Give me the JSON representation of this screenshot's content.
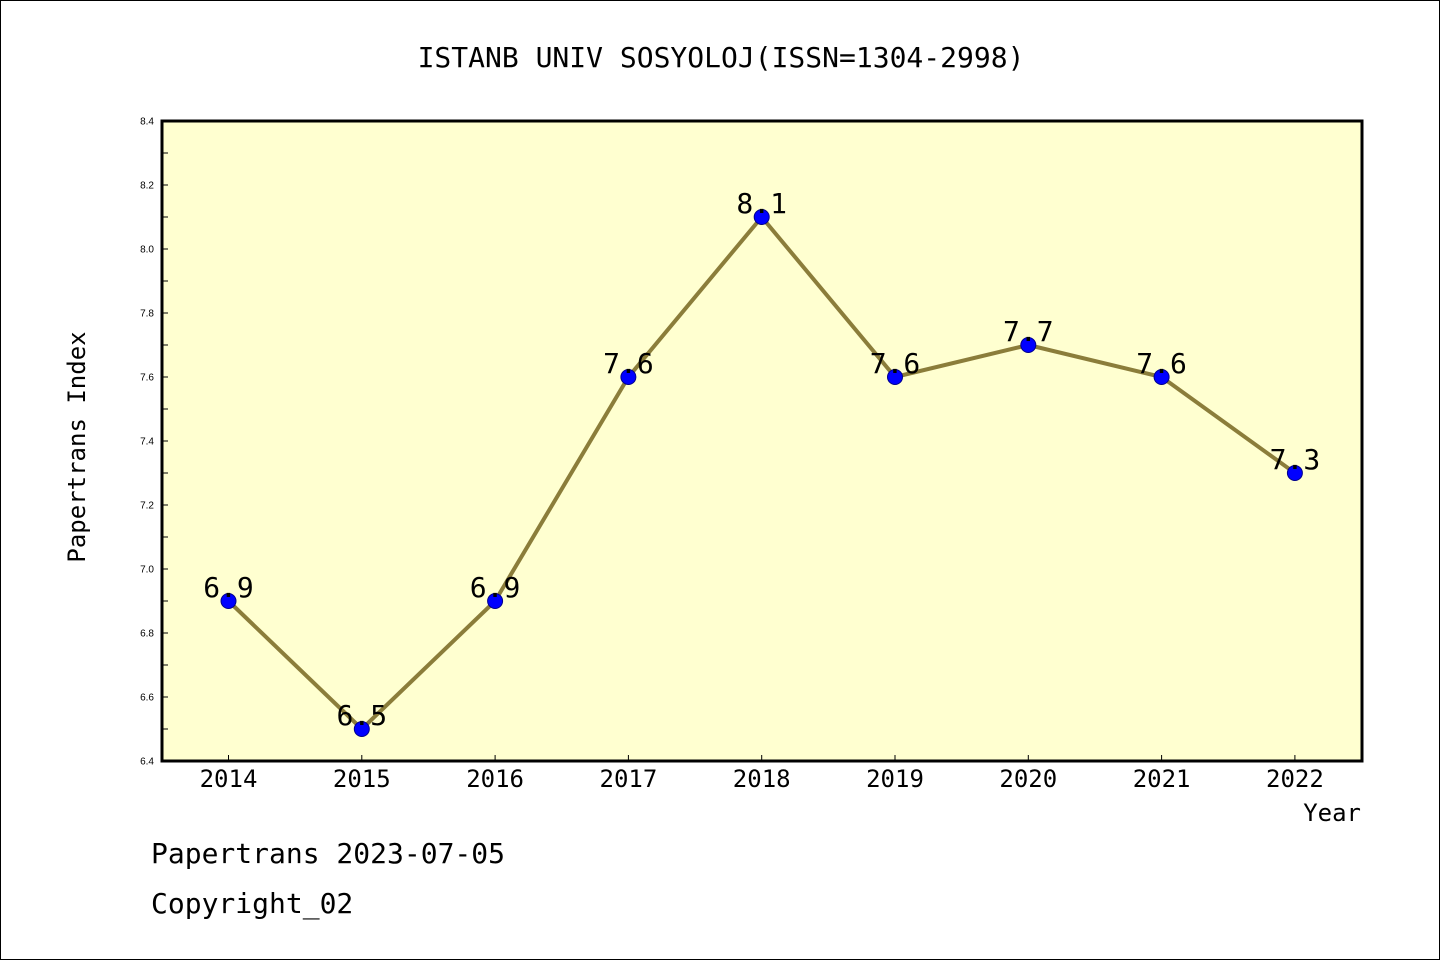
{
  "chart_data": {
    "type": "line",
    "title": "ISTANB UNIV SOSYOLOJ(ISSN=1304-2998)",
    "xlabel": "Year",
    "ylabel": "Papertrans Index",
    "categories": [
      "2014",
      "2015",
      "2016",
      "2017",
      "2018",
      "2019",
      "2020",
      "2021",
      "2022"
    ],
    "series": [
      {
        "values": [
          6.9,
          6.5,
          6.9,
          7.6,
          8.1,
          7.6,
          7.7,
          7.6,
          7.3
        ]
      }
    ],
    "data_labels": [
      "6.9",
      "6.5",
      "6.9",
      "7.6",
      "8.1",
      "7.6",
      "7.7",
      "7.6",
      "7.3"
    ],
    "ylim": [
      6.4,
      8.4
    ],
    "yticks": [
      "6.4",
      "6.6",
      "6.8",
      "7.0",
      "7.2",
      "7.4",
      "7.6",
      "7.8",
      "8.0",
      "8.2",
      "8.4"
    ],
    "grid": false,
    "legend": "none",
    "colors": {
      "plot_background": "#ffffd0",
      "line": "#8b7d3a",
      "marker": "#0000ff",
      "marker_edge": "#00008b",
      "axes": "#000000"
    }
  },
  "footer": {
    "line1": "Papertrans 2023-07-05",
    "line2": "Copyright_02"
  }
}
